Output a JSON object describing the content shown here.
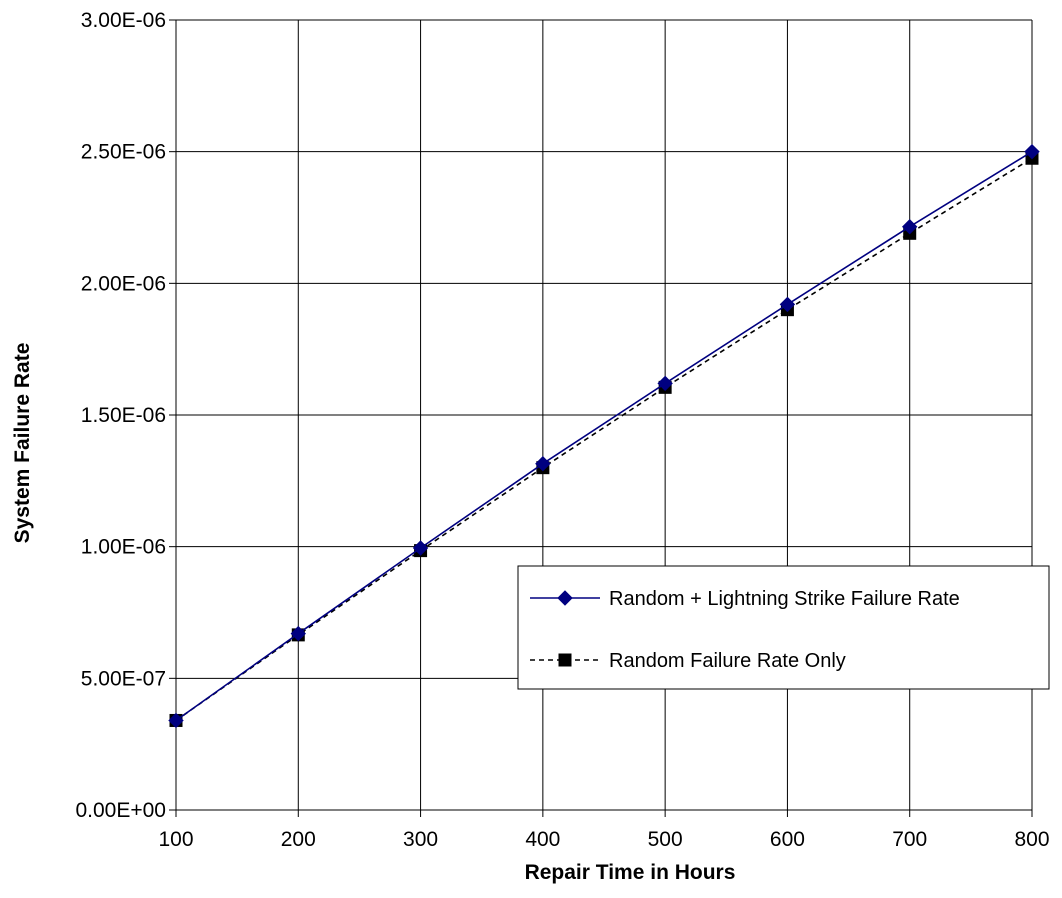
{
  "chart_data": {
    "type": "line",
    "title": "",
    "xlabel": "Repair Time in Hours",
    "ylabel": "System Failure Rate",
    "x": [
      100,
      200,
      300,
      400,
      500,
      600,
      700,
      800
    ],
    "xlim": [
      100,
      800
    ],
    "ylim": [
      0,
      3e-06
    ],
    "x_ticks": [
      100,
      200,
      300,
      400,
      500,
      600,
      700,
      800
    ],
    "x_tick_labels": [
      "100",
      "200",
      "300",
      "400",
      "500",
      "600",
      "700",
      "800"
    ],
    "y_ticks": [
      0,
      5e-07,
      1e-06,
      1.5e-06,
      2e-06,
      2.5e-06,
      3e-06
    ],
    "y_tick_labels": [
      "0.00E+00",
      "5.00E-07",
      "1.00E-06",
      "1.50E-06",
      "2.00E-06",
      "2.50E-06",
      "3.00E-06"
    ],
    "grid": true,
    "legend_position": "right",
    "series": [
      {
        "name": "Random + Lightning Strike Failure Rate",
        "values": [
          3.4e-07,
          6.7e-07,
          9.95e-07,
          1.315e-06,
          1.62e-06,
          1.92e-06,
          2.215e-06,
          2.5e-06
        ],
        "color": "#000080",
        "marker": "diamond",
        "line_style": "solid"
      },
      {
        "name": "Random Failure Rate Only",
        "values": [
          3.4e-07,
          6.65e-07,
          9.85e-07,
          1.3e-06,
          1.605e-06,
          1.9e-06,
          2.19e-06,
          2.475e-06
        ],
        "color": "#000000",
        "marker": "square",
        "line_style": "dashed"
      }
    ]
  }
}
